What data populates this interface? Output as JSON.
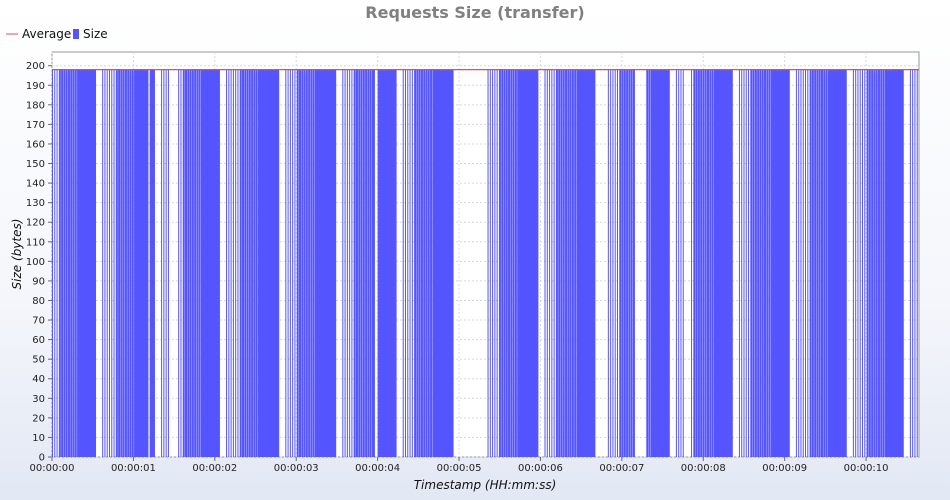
{
  "chart_data": {
    "type": "bar",
    "title": "Requests Size (transfer)",
    "xlabel": "Timestamp (HH:mm:ss)",
    "ylabel": "Size (bytes)",
    "x_ticks": [
      "00:00:00",
      "00:00:01",
      "00:00:02",
      "00:00:03",
      "00:00:04",
      "00:00:05",
      "00:00:06",
      "00:00:07",
      "00:00:08",
      "00:00:09",
      "00:00:10"
    ],
    "xlim": [
      0,
      10.65
    ],
    "ylim": [
      0,
      207
    ],
    "y_ticks": [
      0,
      10,
      20,
      30,
      40,
      50,
      60,
      70,
      80,
      90,
      100,
      110,
      120,
      130,
      140,
      150,
      160,
      170,
      180,
      190,
      200
    ],
    "grid": true,
    "legend_position": "top-left",
    "series": [
      {
        "name": "Average",
        "kind": "line",
        "color": "#e05050",
        "value": 198
      },
      {
        "name": "Size",
        "kind": "bar",
        "color": "#5555ff",
        "value": 198,
        "active_intervals": [
          [
            0.0,
            1.15
          ],
          [
            1.2,
            1.45
          ],
          [
            1.55,
            3.95
          ],
          [
            4.0,
            5.0
          ],
          [
            5.35,
            6.7
          ],
          [
            6.8,
            7.15
          ],
          [
            7.3,
            7.75
          ],
          [
            7.85,
            10.65
          ]
        ]
      }
    ]
  }
}
